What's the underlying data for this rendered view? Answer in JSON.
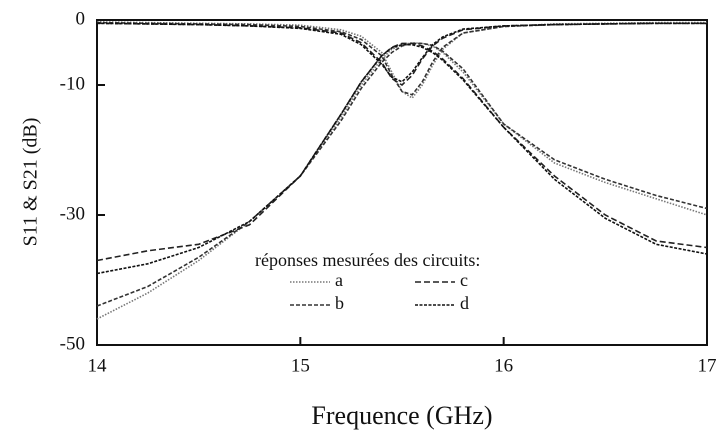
{
  "chart_data": {
    "type": "line",
    "ylabel": "S11 & S21 (dB)",
    "xlabel": "Frequence (GHz)",
    "legend_title": "réponses mesurées des circuits:",
    "xlim": [
      14,
      17
    ],
    "xticks": [
      14,
      15,
      16,
      17
    ],
    "ylim": [
      -50,
      0
    ],
    "yticks": [
      0,
      -10,
      -30,
      -50
    ],
    "x": [
      14,
      14.25,
      14.5,
      14.75,
      15,
      15.2,
      15.3,
      15.4,
      15.45,
      15.5,
      15.55,
      15.6,
      15.65,
      15.7,
      15.8,
      16,
      16.25,
      16.5,
      16.75,
      17
    ],
    "series": [
      {
        "name": "a",
        "color": "#777777",
        "dash": "1.5 1.5",
        "values": [
          -46,
          -42,
          -37,
          -31,
          -24,
          -15,
          -10,
          -6,
          -4.5,
          -3.8,
          -3.5,
          -3.6,
          -4,
          -5,
          -8,
          -16,
          -22,
          -25,
          -27.5,
          -30
        ],
        "s11": [
          -0.3,
          -0.4,
          -0.5,
          -0.6,
          -0.8,
          -1.5,
          -2.5,
          -5,
          -8,
          -11,
          -12,
          -10,
          -7,
          -4.5,
          -2,
          -1,
          -0.6,
          -0.5,
          -0.4,
          -0.4
        ]
      },
      {
        "name": "b",
        "color": "#333333",
        "dash": "4 2",
        "values": [
          -44,
          -41,
          -36.5,
          -31,
          -24,
          -15.5,
          -10.5,
          -6.5,
          -5,
          -4,
          -3.6,
          -3.6,
          -3.9,
          -4.8,
          -7.5,
          -16,
          -21.5,
          -24.5,
          -27,
          -29
        ],
        "s11": [
          -0.4,
          -0.5,
          -0.6,
          -0.7,
          -1,
          -1.8,
          -3,
          -5.5,
          -8.5,
          -11,
          -11.5,
          -9.5,
          -6.5,
          -4.2,
          -2,
          -1,
          -0.7,
          -0.6,
          -0.5,
          -0.5
        ]
      },
      {
        "name": "c",
        "color": "#222222",
        "dash": "6 3",
        "values": [
          -37,
          -35.5,
          -34.5,
          -31.5,
          -24,
          -14.5,
          -9.5,
          -5.5,
          -4.2,
          -3.6,
          -3.6,
          -4,
          -4.8,
          -6,
          -9,
          -16.5,
          -24,
          -30,
          -34,
          -35
        ],
        "s11": [
          -0.5,
          -0.6,
          -0.7,
          -0.9,
          -1.2,
          -2,
          -3.5,
          -6.5,
          -9,
          -10,
          -8.5,
          -6,
          -4,
          -2.8,
          -1.5,
          -0.9,
          -0.7,
          -0.6,
          -0.5,
          -0.5
        ]
      },
      {
        "name": "d",
        "color": "#111111",
        "dash": "3 1.5",
        "values": [
          -39,
          -37.5,
          -35,
          -31,
          -24,
          -14.5,
          -9.5,
          -5.5,
          -4.3,
          -3.8,
          -3.8,
          -4.2,
          -5,
          -6.2,
          -9.2,
          -16.5,
          -24.5,
          -30.5,
          -34.5,
          -36
        ],
        "s11": [
          -0.5,
          -0.6,
          -0.7,
          -0.9,
          -1.3,
          -2.2,
          -3.8,
          -6.8,
          -8.8,
          -9.5,
          -8,
          -5.8,
          -3.8,
          -2.6,
          -1.4,
          -0.9,
          -0.7,
          -0.6,
          -0.5,
          -0.5
        ]
      }
    ]
  }
}
